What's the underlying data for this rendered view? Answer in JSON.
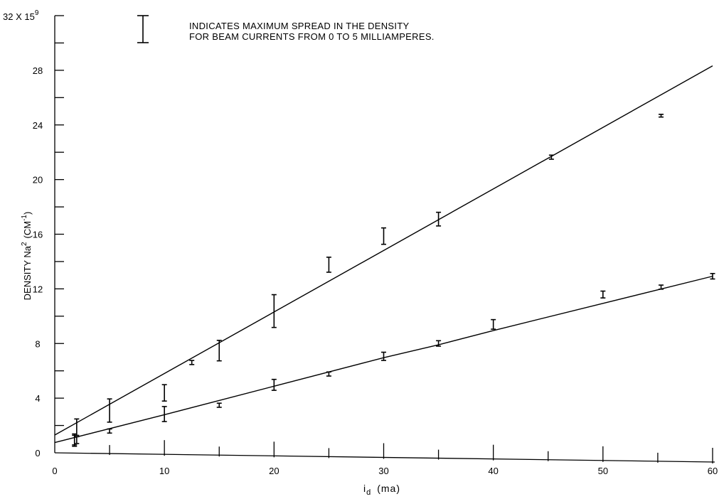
{
  "chart_data": {
    "type": "line",
    "title": "",
    "y_top_label": "32 X 15",
    "y_top_label_exp": "9",
    "xlabel": "i",
    "xlabel_sub": "d",
    "xlabel_unit": "(ma)",
    "ylabel": "DENSITY Na",
    "ylabel_sup": "2",
    "ylabel_unit": "(CM",
    "ylabel_unit_sup": "-1",
    "ylabel_unit_close": ")",
    "xlim": [
      0,
      60
    ],
    "ylim": [
      0,
      32
    ],
    "x_ticks": [
      "0",
      "10",
      "20",
      "30",
      "40",
      "50",
      "60"
    ],
    "y_ticks": [
      "0",
      "4",
      "8",
      "12",
      "16",
      "20",
      "24",
      "28"
    ],
    "legend": {
      "line1": "INDICATES MAXIMUM SPREAD IN THE DENSITY",
      "line2": "FOR BEAM CURRENTS FROM 0 TO 5 MILLIAMPERES."
    },
    "series": [
      {
        "fit": [
          [
            0,
            1.3
          ],
          [
            60,
            29.0
          ]
        ],
        "points": [
          {
            "x": 1.8,
            "low": 0.5,
            "high": 1.4
          },
          {
            "x": 2.0,
            "low": 1.3,
            "high": 2.5
          },
          {
            "x": 5.0,
            "low": 2.3,
            "high": 4.0
          },
          {
            "x": 10.0,
            "low": 3.9,
            "high": 5.1
          },
          {
            "x": 12.5,
            "low": 6.6,
            "high": 6.9
          },
          {
            "x": 15.0,
            "low": 6.9,
            "high": 8.4
          },
          {
            "x": 20.0,
            "low": 9.4,
            "high": 11.8
          },
          {
            "x": 25.0,
            "low": 13.5,
            "high": 14.6
          },
          {
            "x": 30.0,
            "low": 15.6,
            "high": 16.8
          },
          {
            "x": 35.0,
            "low": 17.0,
            "high": 18.0
          },
          {
            "x": 45.3,
            "low": 22.0,
            "high": 22.3
          },
          {
            "x": 55.3,
            "low": 25.2,
            "high": 25.4
          }
        ]
      },
      {
        "fit": [
          [
            0,
            0.75
          ],
          [
            10,
            2.9
          ],
          [
            20,
            5.1
          ],
          [
            30,
            7.3
          ],
          [
            35,
            8.3
          ],
          [
            40,
            9.4
          ],
          [
            50,
            11.5
          ],
          [
            60,
            13.6
          ]
        ],
        "points": [
          {
            "x": 1.8,
            "low": 0.6,
            "high": 1.3
          },
          {
            "x": 2.0,
            "low": 0.7,
            "high": 1.2
          },
          {
            "x": 5.0,
            "low": 1.5,
            "high": 1.8
          },
          {
            "x": 10.0,
            "low": 2.4,
            "high": 3.5
          },
          {
            "x": 15.0,
            "low": 3.5,
            "high": 3.8
          },
          {
            "x": 20.0,
            "low": 4.8,
            "high": 5.6
          },
          {
            "x": 25.0,
            "low": 5.9,
            "high": 6.2
          },
          {
            "x": 30.0,
            "low": 7.1,
            "high": 7.7
          },
          {
            "x": 35.0,
            "low": 8.2,
            "high": 8.6
          },
          {
            "x": 40.0,
            "low": 9.5,
            "high": 10.2
          },
          {
            "x": 50.0,
            "low": 11.9,
            "high": 12.4
          },
          {
            "x": 55.3,
            "low": 12.6,
            "high": 12.9
          },
          {
            "x": 60.0,
            "low": 13.4,
            "high": 13.8
          }
        ]
      }
    ]
  }
}
